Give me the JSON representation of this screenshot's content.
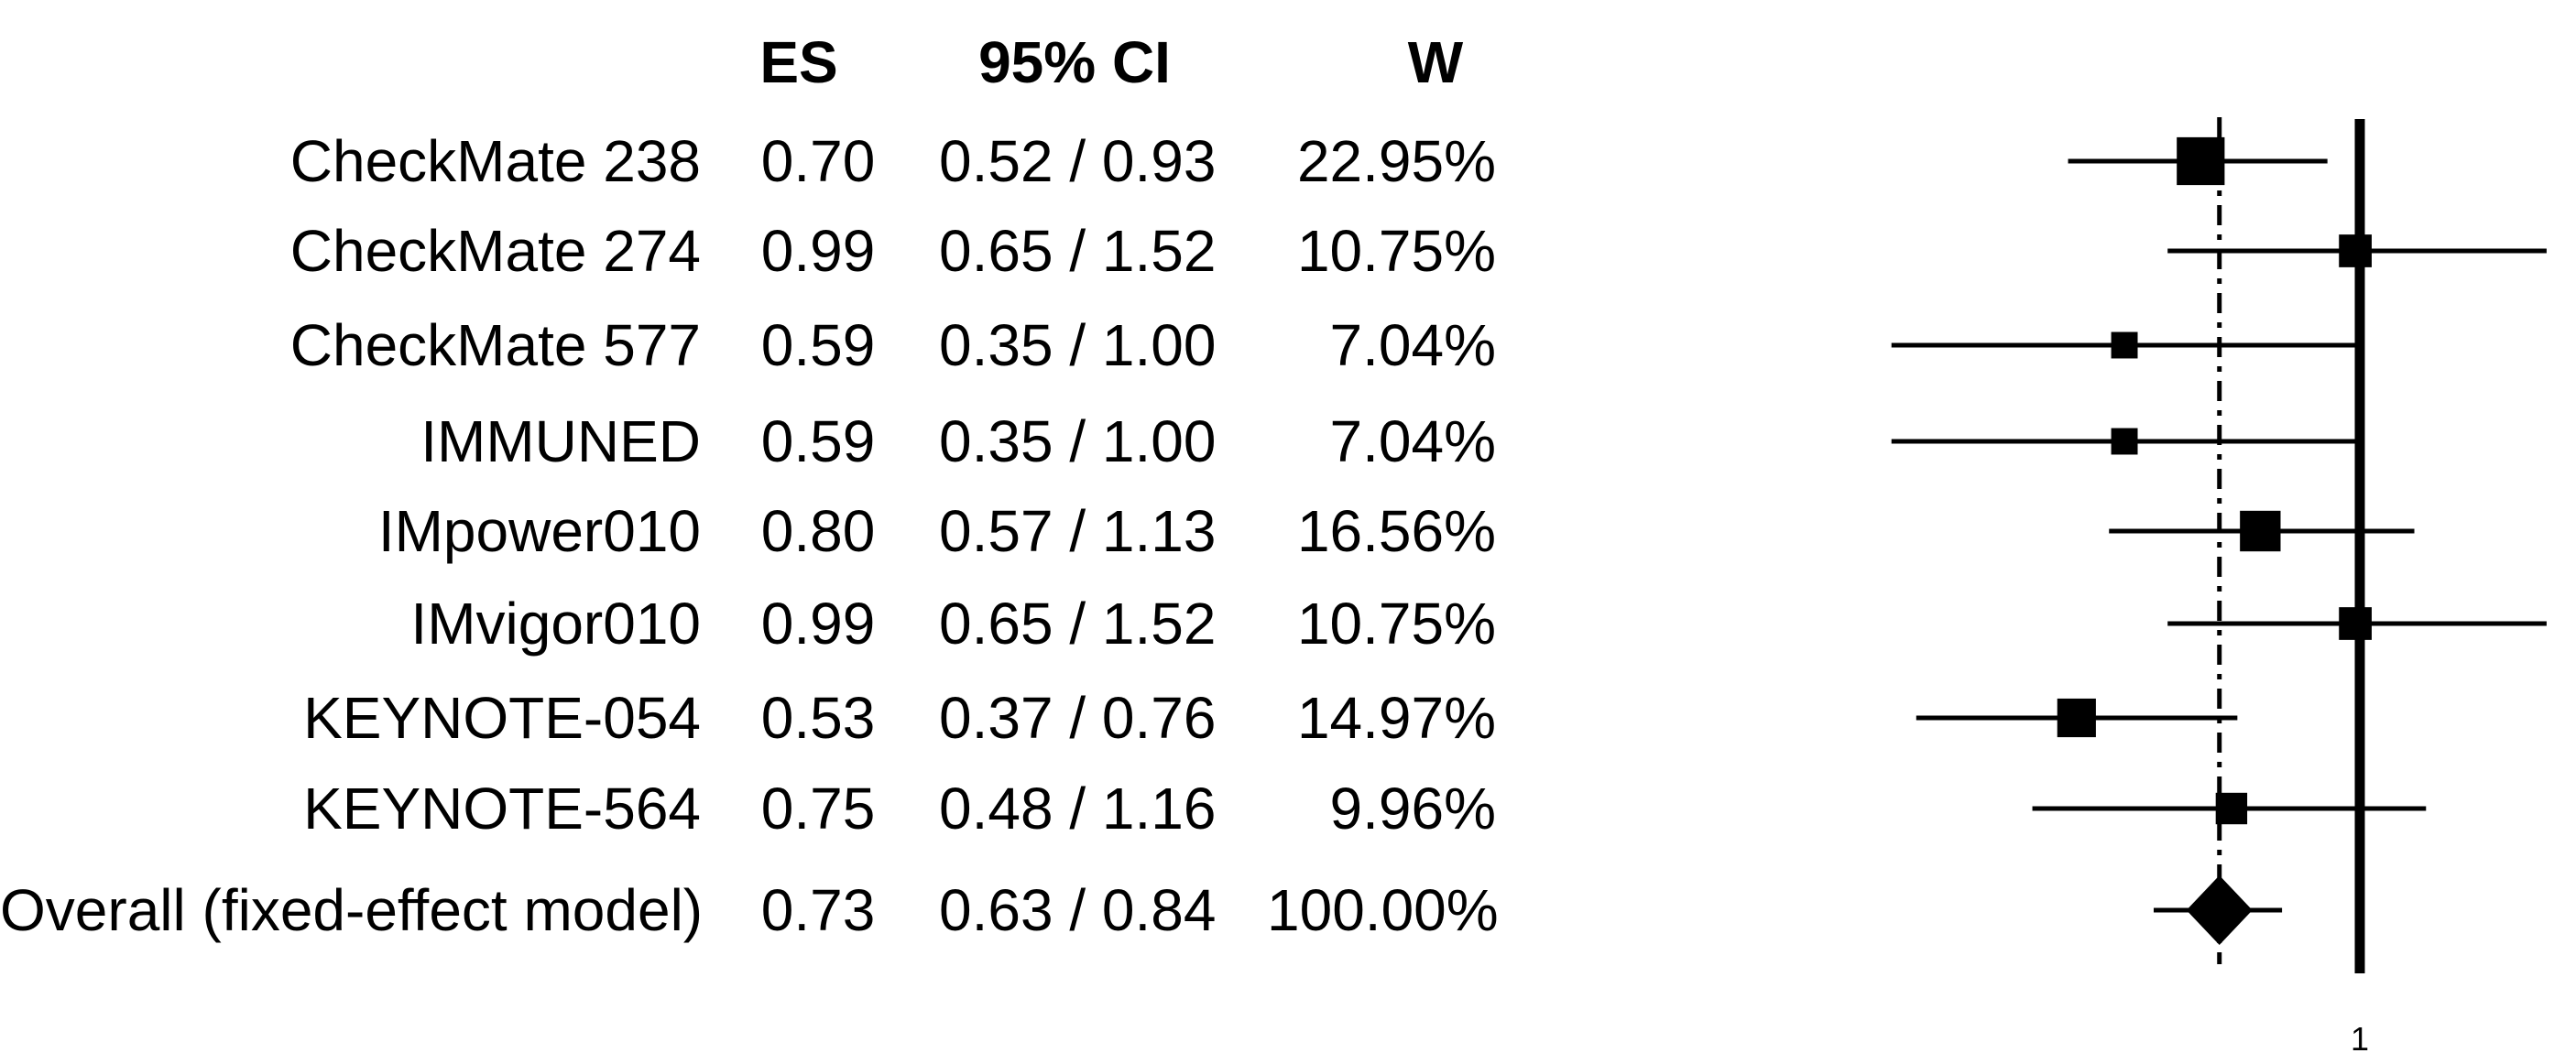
{
  "table": {
    "headers": {
      "es": "ES",
      "ci": "95% CI",
      "w": "W"
    },
    "rows": [
      {
        "label": "CheckMate 238",
        "es": "0.70",
        "ci": "0.52 / 0.93",
        "w": "22.95%"
      },
      {
        "label": "CheckMate 274",
        "es": "0.99",
        "ci": "0.65 / 1.52",
        "w": "10.75%"
      },
      {
        "label": "CheckMate 577",
        "es": "0.59",
        "ci": "0.35 / 1.00",
        "w": "7.04%"
      },
      {
        "label": "IMMUNED",
        "es": "0.59",
        "ci": "0.35 / 1.00",
        "w": "7.04%"
      },
      {
        "label": "IMpower010",
        "es": "0.80",
        "ci": "0.57 / 1.13",
        "w": "16.56%"
      },
      {
        "label": "IMvigor010",
        "es": "0.99",
        "ci": "0.65 / 1.52",
        "w": "10.75%"
      },
      {
        "label": "KEYNOTE-054",
        "es": "0.53",
        "ci": "0.37 / 0.76",
        "w": "14.97%"
      },
      {
        "label": "KEYNOTE-564",
        "es": "0.75",
        "ci": "0.48 / 1.16",
        "w": "9.96%"
      },
      {
        "label": "Overall (fixed-effect model)",
        "es": "0.73",
        "ci": "0.63 / 0.84",
        "w": "100.00%"
      }
    ]
  },
  "chart_data": {
    "type": "forest",
    "scale": "log",
    "title": "",
    "axis": {
      "ref_value": 1,
      "tick_labels": [
        "1"
      ]
    },
    "overall_line_value": 0.73,
    "studies": [
      {
        "label": "CheckMate 238",
        "es": 0.7,
        "lo": 0.52,
        "hi": 0.93,
        "weight": 22.95
      },
      {
        "label": "CheckMate 274",
        "es": 0.99,
        "lo": 0.65,
        "hi": 1.52,
        "weight": 10.75
      },
      {
        "label": "CheckMate 577",
        "es": 0.59,
        "lo": 0.35,
        "hi": 1.0,
        "weight": 7.04
      },
      {
        "label": "IMMUNED",
        "es": 0.59,
        "lo": 0.35,
        "hi": 1.0,
        "weight": 7.04
      },
      {
        "label": "IMpower010",
        "es": 0.8,
        "lo": 0.57,
        "hi": 1.13,
        "weight": 16.56
      },
      {
        "label": "IMvigor010",
        "es": 0.99,
        "lo": 0.65,
        "hi": 1.52,
        "weight": 10.75
      },
      {
        "label": "KEYNOTE-054",
        "es": 0.53,
        "lo": 0.37,
        "hi": 0.76,
        "weight": 14.97
      },
      {
        "label": "KEYNOTE-564",
        "es": 0.75,
        "lo": 0.48,
        "hi": 1.16,
        "weight": 9.96
      }
    ],
    "overall": {
      "label": "Overall (fixed-effect model)",
      "es": 0.73,
      "lo": 0.63,
      "hi": 0.84,
      "weight": 100.0
    },
    "colors": {
      "ink": "#000000",
      "background": "#ffffff"
    }
  }
}
